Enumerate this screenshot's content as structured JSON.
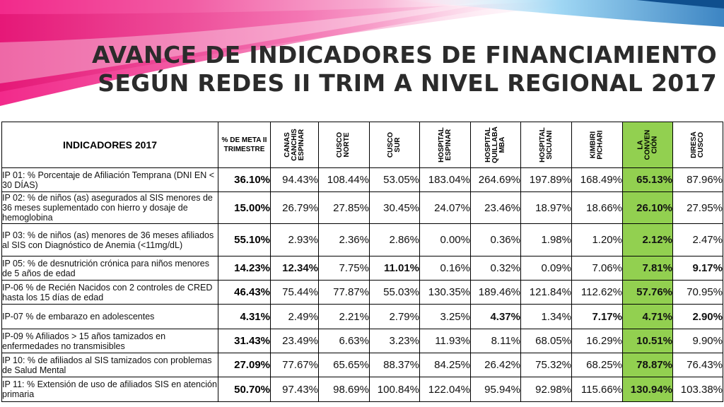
{
  "title": {
    "line1": "AVANCE DE INDICADORES DE FINANCIAMIENTO",
    "line2": "SEGÚN REDES II TRIM A NIVEL REGIONAL 2017"
  },
  "colors": {
    "highlight": "#92d050",
    "banner_magenta": "#e8197c",
    "banner_blue": "#1f7fc4"
  },
  "table": {
    "header": {
      "indicators": "INDICADORES 2017",
      "meta": "% DE META II TRIMESTRE",
      "orgs": [
        {
          "label": "CANAS\nCANCHIS\nESPINAR"
        },
        {
          "label": "CUSCO\nNORTE"
        },
        {
          "label": "CUSCO\nSUR"
        },
        {
          "label": "HOSPITAL\nESPINAR"
        },
        {
          "label": "HOSPITAL\nQUILLABA\nMBA"
        },
        {
          "label": "HOSPITAL\nSICUANI"
        },
        {
          "label": "KIMBIRI\nPICHARI"
        },
        {
          "label": "LA\nCONVEN\nCIÓN"
        },
        {
          "label": "DIRESA\nCUSCO"
        }
      ]
    },
    "rows": [
      {
        "indicator": "IP 01: % Porcentaje de Afiliación Temprana (DNI EN < 30 DÍAS)",
        "meta": "36.10%",
        "values": [
          "94.43%",
          "108.44%",
          "53.05%",
          "183.04%",
          "264.69%",
          "197.89%",
          "168.49%",
          "65.13%",
          "87.96%"
        ],
        "bold": [
          false,
          false,
          false,
          false,
          false,
          false,
          false,
          true,
          false
        ]
      },
      {
        "indicator": "IP 02: % de niños (as) asegurados al SIS menores de 36 meses suplementado con hierro y dosaje de hemoglobina",
        "meta": "15.00%",
        "values": [
          "26.79%",
          "27.85%",
          "30.45%",
          "24.07%",
          "23.46%",
          "18.97%",
          "18.66%",
          "26.10%",
          "27.95%"
        ],
        "bold": [
          false,
          false,
          false,
          false,
          false,
          false,
          false,
          true,
          false
        ]
      },
      {
        "indicator": "IP 03: % de niños (as) menores de 36 meses afiliados al SIS con Diagnóstico de Anemia (<11mg/dL)",
        "meta": "55.10%",
        "values": [
          "2.93%",
          "2.36%",
          "2.86%",
          "0.00%",
          "0.36%",
          "1.98%",
          "1.20%",
          "2.12%",
          "2.47%"
        ],
        "bold": [
          false,
          false,
          false,
          false,
          false,
          false,
          false,
          true,
          false
        ]
      },
      {
        "indicator": "IP 05: % de desnutrición crónica para niños menores de 5 años de edad",
        "meta": "14.23%",
        "values": [
          "12.34%",
          "7.75%",
          "11.01%",
          "0.16%",
          "0.32%",
          "0.09%",
          "7.06%",
          "7.81%",
          "9.17%"
        ],
        "bold": [
          true,
          false,
          true,
          false,
          false,
          false,
          false,
          true,
          true
        ]
      },
      {
        "indicator": "IP-06 % de Recién Nacidos con 2 controles de CRED hasta los 15 días de edad",
        "meta": "46.43%",
        "values": [
          "75.44%",
          "77.87%",
          "55.03%",
          "130.35%",
          "189.46%",
          "121.84%",
          "112.62%",
          "57.76%",
          "70.95%"
        ],
        "bold": [
          false,
          false,
          false,
          false,
          false,
          false,
          false,
          true,
          false
        ]
      },
      {
        "indicator": "IP-07 % de embarazo en adolescentes",
        "meta": "4.31%",
        "values": [
          "2.49%",
          "2.21%",
          "2.79%",
          "3.25%",
          "4.37%",
          "1.34%",
          "7.17%",
          "4.71%",
          "2.90%"
        ],
        "bold": [
          false,
          false,
          false,
          false,
          true,
          false,
          true,
          true,
          true
        ]
      },
      {
        "indicator": "IP-09 % Afiliados > 15 años tamizados en enfermedades no transmisibles",
        "meta": "31.43%",
        "values": [
          "23.49%",
          "6.63%",
          "3.23%",
          "11.93%",
          "8.11%",
          "68.05%",
          "16.29%",
          "10.51%",
          "9.90%"
        ],
        "bold": [
          false,
          false,
          false,
          false,
          false,
          false,
          false,
          true,
          false
        ]
      },
      {
        "indicator": "IP 10: % de afiliados al SIS tamizados con problemas de Salud Mental",
        "meta": "27.09%",
        "values": [
          "77.67%",
          "65.65%",
          "88.37%",
          "84.25%",
          "26.42%",
          "75.32%",
          "68.25%",
          "78.87%",
          "76.43%"
        ],
        "bold": [
          false,
          false,
          false,
          false,
          false,
          false,
          false,
          true,
          false
        ]
      },
      {
        "indicator": "IP 11: % Extensión de uso de afiliados SIS en atención primaria",
        "meta": "50.70%",
        "values": [
          "97.43%",
          "98.69%",
          "100.84%",
          "122.04%",
          "95.94%",
          "92.98%",
          "115.66%",
          "130.94%",
          "103.38%"
        ],
        "bold": [
          false,
          false,
          false,
          false,
          false,
          false,
          false,
          true,
          false
        ]
      }
    ]
  }
}
